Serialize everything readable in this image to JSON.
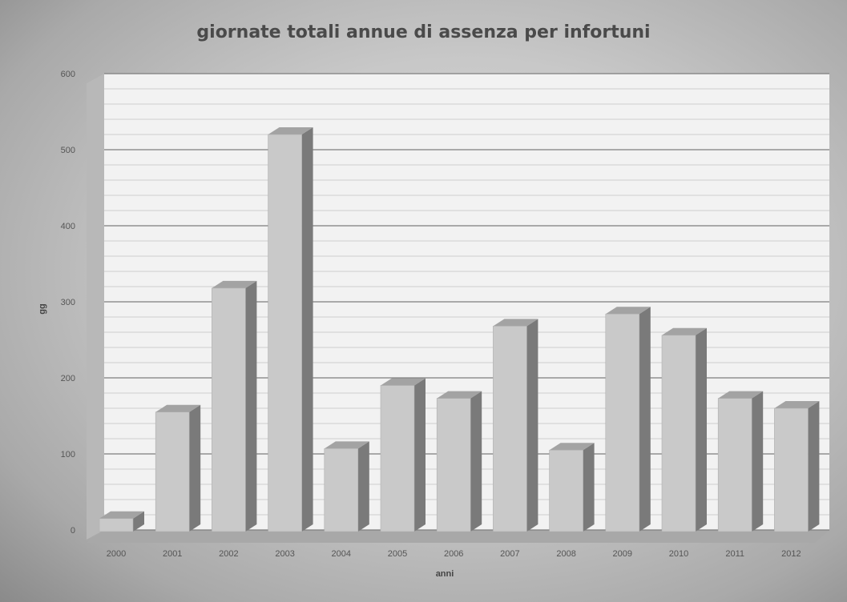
{
  "chart_data": {
    "type": "bar",
    "title": "giornate totali annue di assenza per infortuni",
    "xlabel": "anni",
    "ylabel": "gg",
    "categories": [
      "2000",
      "2001",
      "2002",
      "2003",
      "2004",
      "2005",
      "2006",
      "2007",
      "2008",
      "2009",
      "2010",
      "2011",
      "2012"
    ],
    "values": [
      15,
      155,
      318,
      520,
      107,
      190,
      173,
      268,
      105,
      284,
      256,
      173,
      160
    ],
    "ylim": [
      0,
      600
    ],
    "yticks": [
      0,
      100,
      200,
      300,
      400,
      500,
      600
    ],
    "grid": true,
    "legend": "none",
    "style": "3d-column",
    "colors": {
      "bar_front": "#c9c9c9",
      "bar_side": "#7a7a7a",
      "bar_top": "#a3a3a3",
      "plot_bg": "#f2f2f2",
      "grid": "#8e8e8e"
    }
  }
}
